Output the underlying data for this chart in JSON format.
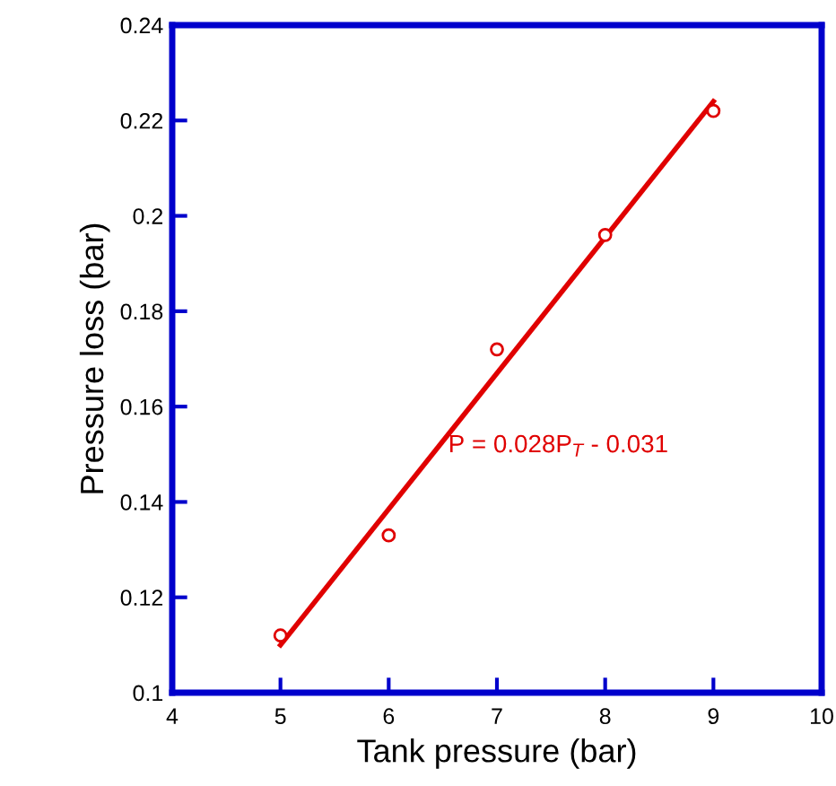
{
  "chart_data": {
    "type": "scatter",
    "xlabel": "Tank pressure (bar)",
    "ylabel": "Pressure loss (bar)",
    "series": [
      {
        "color": "#e00000",
        "x": [
          5,
          6,
          7,
          8,
          9
        ],
        "values": [
          0.112,
          0.133,
          0.172,
          0.196,
          0.222
        ],
        "marker": "circle"
      },
      {
        "type": "line",
        "color": "#e00000",
        "x": [
          5,
          9
        ],
        "values": [
          0.11,
          0.224
        ],
        "marker": "none",
        "line_style": "solid"
      }
    ],
    "annotations": [
      "P = 0.028P$_{T}$ - 0.031"
    ],
    "xlim": [
      4,
      10
    ],
    "ylim": [
      0.1,
      0.24
    ],
    "xticks": [
      4,
      5,
      6,
      7,
      8,
      9,
      10
    ],
    "yticks": [
      0.1,
      0.12,
      0.14,
      0.16,
      0.18,
      0.2,
      0.22,
      0.24
    ],
    "grid": false,
    "legend": false
  }
}
